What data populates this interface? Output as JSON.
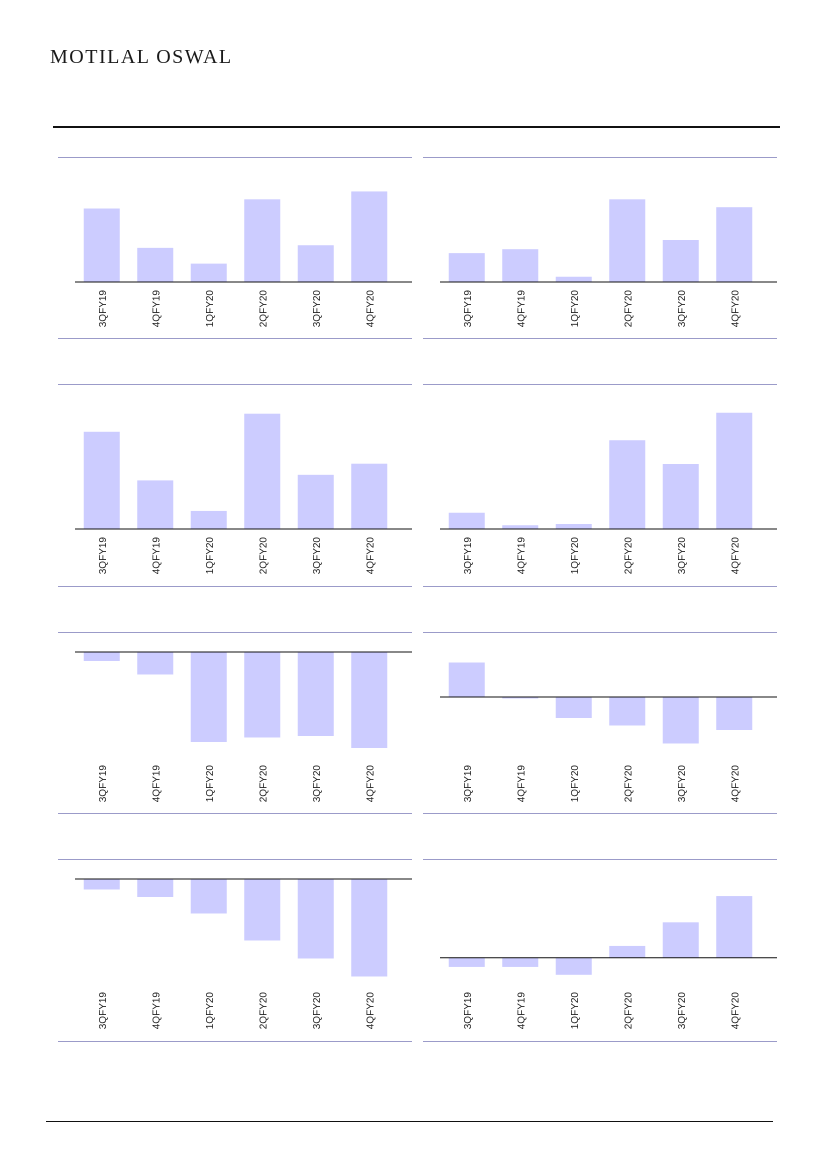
{
  "header": {
    "brand": "MOTILAL OSWAL"
  },
  "colors": {
    "bar": "#ccccff",
    "panel_rule": "#9b9bc9",
    "axis": "#111111"
  },
  "chart_data": [
    {
      "type": "bar",
      "categories": [
        "3QFY19",
        "4QFY19",
        "1QFY20",
        "2QFY20",
        "3QFY20",
        "4QFY20"
      ],
      "values": [
        5.6,
        2.6,
        1.4,
        6.3,
        2.8,
        6.9
      ],
      "ylim": [
        0,
        8
      ]
    },
    {
      "type": "bar",
      "categories": [
        "3QFY19",
        "4QFY19",
        "1QFY20",
        "2QFY20",
        "3QFY20",
        "4QFY20"
      ],
      "values": [
        2.2,
        2.5,
        0.4,
        6.3,
        3.2,
        5.7
      ],
      "ylim": [
        0,
        8
      ]
    },
    {
      "type": "bar",
      "categories": [
        "3QFY19",
        "4QFY19",
        "1QFY20",
        "2QFY20",
        "3QFY20",
        "4QFY20"
      ],
      "values": [
        7.0,
        3.5,
        1.3,
        8.3,
        3.9,
        4.7
      ],
      "ylim": [
        0,
        9
      ]
    },
    {
      "type": "bar",
      "categories": [
        "3QFY19",
        "4QFY19",
        "1QFY20",
        "2QFY20",
        "3QFY20",
        "4QFY20"
      ],
      "values": [
        1.3,
        0.3,
        0.4,
        7.1,
        5.2,
        9.3
      ],
      "ylim": [
        0,
        10
      ]
    },
    {
      "type": "bar",
      "categories": [
        "3QFY19",
        "4QFY19",
        "1QFY20",
        "2QFY20",
        "3QFY20",
        "4QFY20"
      ],
      "values": [
        -0.6,
        -1.5,
        -6.0,
        -5.7,
        -5.6,
        -6.4
      ],
      "ylim": [
        -7,
        0
      ]
    },
    {
      "type": "bar",
      "categories": [
        "3QFY19",
        "4QFY19",
        "1QFY20",
        "2QFY20",
        "3QFY20",
        "4QFY20"
      ],
      "values": [
        2.3,
        -0.1,
        -1.4,
        -1.9,
        -3.1,
        -2.2
      ],
      "ylim": [
        -4,
        3
      ]
    },
    {
      "type": "bar",
      "categories": [
        "3QFY19",
        "4QFY19",
        "1QFY20",
        "2QFY20",
        "3QFY20",
        "4QFY20"
      ],
      "values": [
        -0.7,
        -1.2,
        -2.3,
        -4.1,
        -5.3,
        -6.5
      ],
      "ylim": [
        -7,
        0
      ]
    },
    {
      "type": "bar",
      "categories": [
        "3QFY19",
        "4QFY19",
        "1QFY20",
        "2QFY20",
        "3QFY20",
        "4QFY20"
      ],
      "values": [
        -0.7,
        -0.7,
        -1.3,
        0.9,
        2.7,
        4.7
      ],
      "ylim": [
        -2,
        6
      ]
    }
  ]
}
